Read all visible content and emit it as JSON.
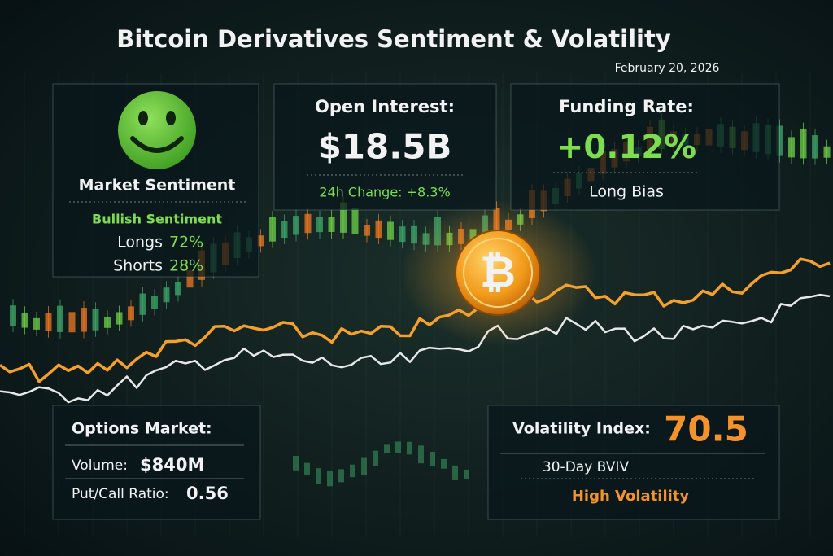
{
  "header": {
    "title": "Bitcoin Derivatives Sentiment & Volatility",
    "date": "February 20, 2026"
  },
  "sentiment": {
    "label": "Market Sentiment",
    "status": "Bullish Sentiment",
    "longs": {
      "label": "Longs",
      "value": "72%"
    },
    "shorts": {
      "label": "Shorts",
      "value": "28%"
    }
  },
  "open_interest": {
    "label": "Open Interest:",
    "value": "$18.5B",
    "change": "24h Change: +8.3%"
  },
  "funding_rate": {
    "label": "Funding Rate:",
    "value": "+0.12%",
    "bias": "Long Bias"
  },
  "coin": {
    "symbol": "₿"
  },
  "options": {
    "label": "Options Market:",
    "volume": {
      "label": "Volume:",
      "value": "$840M"
    },
    "put_call": {
      "label": "Put/Call Ratio:",
      "value": "0.56"
    }
  },
  "volatility": {
    "label": "Volatility Index:",
    "value": "70.5",
    "sub": "30-Day BVIV",
    "status": "High Volatility"
  }
}
